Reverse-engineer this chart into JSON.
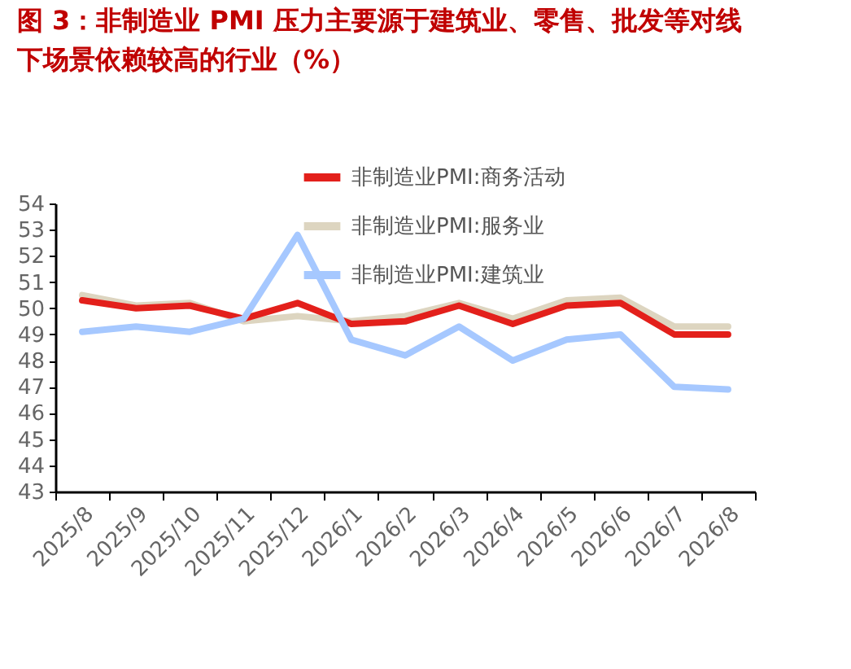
{
  "chart_data": {
    "type": "line",
    "title": "图 3：非制造业 PMI 压力主要源于建筑业、零售、批发等对线下场景依赖较高的行业（%）",
    "categories": [
      "2025/8",
      "2025/9",
      "2025/10",
      "2025/11",
      "2025/12",
      "2026/1",
      "2026/2",
      "2026/3",
      "2026/4",
      "2026/5",
      "2026/6",
      "2026/7",
      "2026/8"
    ],
    "series": [
      {
        "name": "非制造业PMI:商务活动",
        "color": "#e3201b",
        "values": [
          50.3,
          50.0,
          50.1,
          49.6,
          50.2,
          49.4,
          49.5,
          50.1,
          49.4,
          50.1,
          50.2,
          49.0,
          49.0
        ]
      },
      {
        "name": "非制造业PMI:服务业",
        "color": "#ddd5c0",
        "values": [
          50.5,
          50.1,
          50.2,
          49.5,
          49.7,
          49.5,
          49.7,
          50.2,
          49.6,
          50.3,
          50.4,
          49.3,
          49.3
        ]
      },
      {
        "name": "非制造业PMI:建筑业",
        "color": "#a6c8ff",
        "values": [
          49.1,
          49.3,
          49.1,
          49.6,
          52.8,
          48.8,
          48.2,
          49.3,
          48.0,
          48.8,
          49.0,
          47.0,
          46.9
        ]
      }
    ],
    "ylim": [
      43,
      54
    ],
    "yticks": [
      43,
      44,
      45,
      46,
      47,
      48,
      49,
      50,
      51,
      52,
      53,
      54
    ],
    "grid": false,
    "legend": "top right",
    "line_style": "solid",
    "marker": "none"
  }
}
